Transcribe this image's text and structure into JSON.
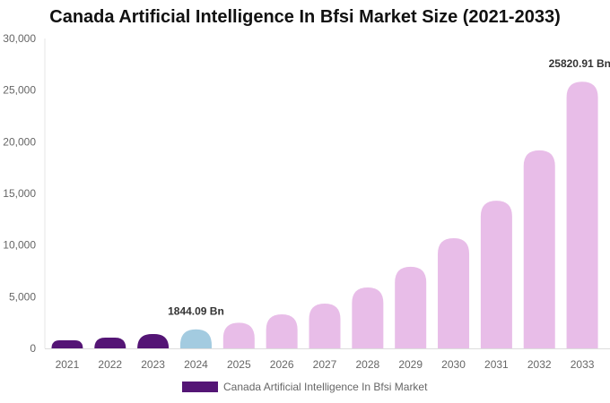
{
  "chart_data": {
    "type": "bar",
    "title": "Canada Artificial Intelligence In Bfsi Market Size (2021-2033)",
    "categories": [
      "2021",
      "2022",
      "2023",
      "2024",
      "2025",
      "2026",
      "2027",
      "2028",
      "2029",
      "2030",
      "2031",
      "2032",
      "2033"
    ],
    "series": [
      {
        "name": "Canada Artificial Intelligence In Bfsi Market",
        "values": [
          780,
          1040,
          1390,
          1844.09,
          2480,
          3290,
          4340,
          5900,
          7900,
          10670,
          14300,
          19170,
          25820.91
        ]
      }
    ],
    "data_labels": {
      "2024": "1844.09 Bn",
      "2033": "25820.91 Bn"
    },
    "ylim": [
      0,
      30000
    ],
    "yticks": [
      "0",
      "5,000",
      "10,000",
      "15,000",
      "20,000",
      "25,000",
      "30,000"
    ],
    "grid": false,
    "legend": "bottom",
    "colors": {
      "historical": "#541575",
      "current": "#a3cbe0",
      "forecast": "#e8bde8"
    }
  }
}
